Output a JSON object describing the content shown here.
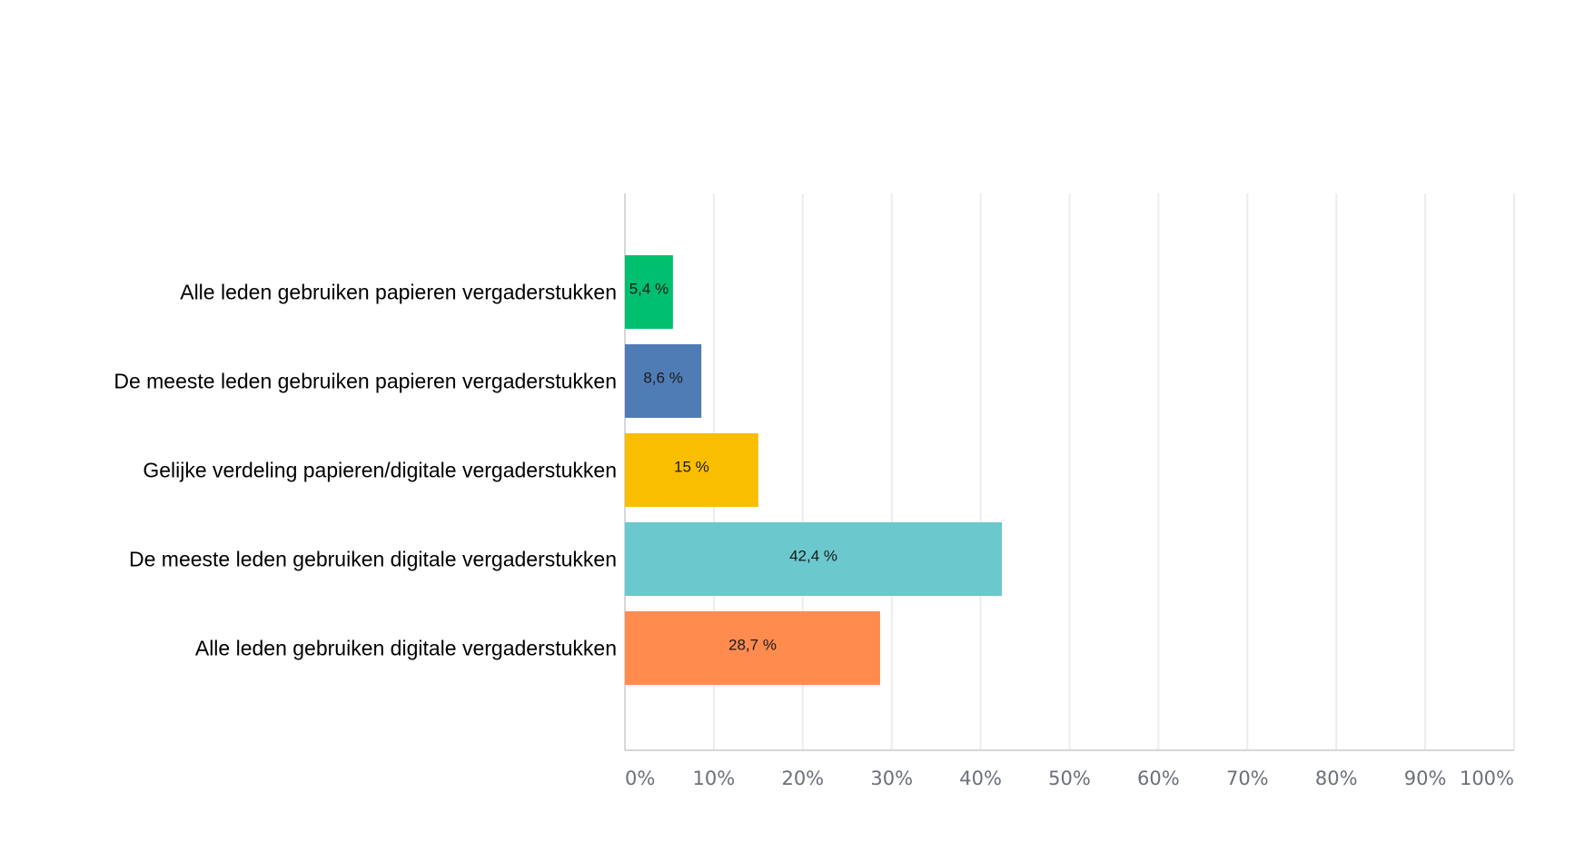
{
  "chart_data": {
    "type": "bar",
    "orientation": "horizontal",
    "title": "",
    "xlabel": "",
    "ylabel": "",
    "categories": [
      "Alle leden gebruiken papieren vergaderstukken",
      "De meeste leden gebruiken papieren vergaderstukken",
      "Gelijke verdeling papieren/digitale vergaderstukken",
      "De meeste leden gebruiken digitale vergaderstukken",
      "Alle leden gebruiken digitale vergaderstukken"
    ],
    "values": [
      5.4,
      8.6,
      15,
      42.4,
      28.7
    ],
    "value_labels": [
      "5,4 %",
      "8,6 %",
      "15 %",
      "42,4 %",
      "28,7 %"
    ],
    "colors": [
      "#00bf6f",
      "#507cb6",
      "#f9be00",
      "#6bc8cd",
      "#ff8b4f"
    ],
    "xlim": [
      0,
      100
    ],
    "x_ticks": [
      0,
      10,
      20,
      30,
      40,
      50,
      60,
      70,
      80,
      90,
      100
    ],
    "x_tick_labels": [
      "0%",
      "10%",
      "20%",
      "30%",
      "40%",
      "50%",
      "60%",
      "70%",
      "80%",
      "90%",
      "100%"
    ],
    "grid": "vertical",
    "legend": "none"
  }
}
